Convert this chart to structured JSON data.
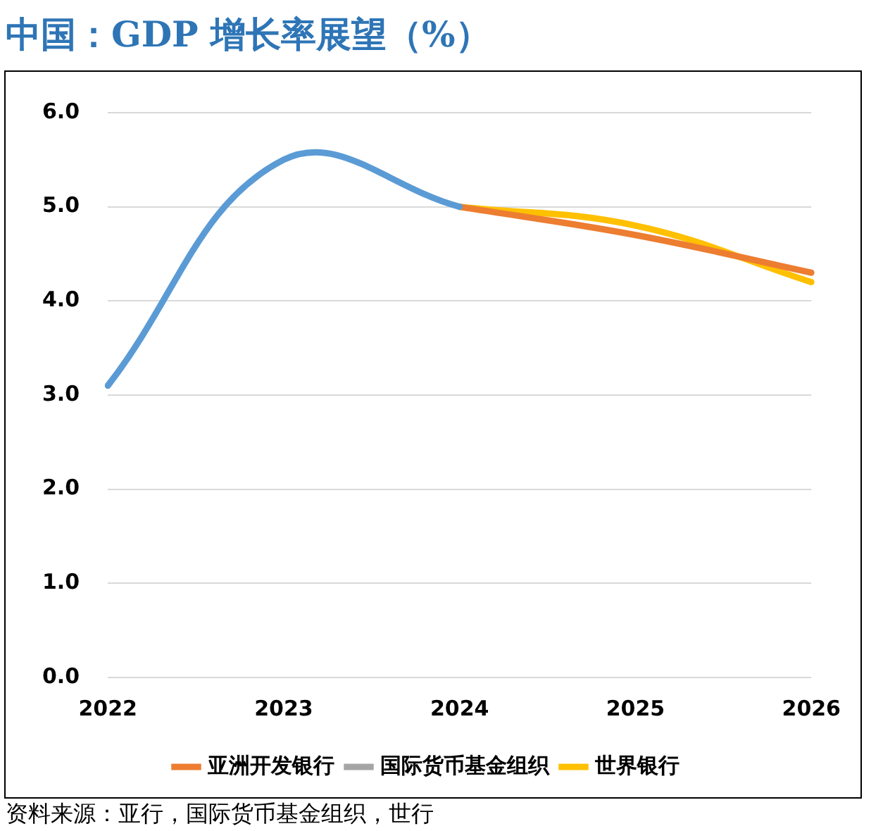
{
  "chart_data": {
    "type": "line",
    "title": "中国：GDP 增长率展望（%）",
    "categories": [
      "2022",
      "2023",
      "2024",
      "2025",
      "2026"
    ],
    "series": [
      {
        "color": "#5b9bd5",
        "values": [
          3.1,
          5.5,
          5.0,
          null,
          null
        ]
      },
      {
        "name": "亚洲开发银行",
        "color": "#ed7d31",
        "values": [
          null,
          null,
          5.0,
          4.7,
          4.3
        ]
      },
      {
        "name": "国际货币基金组织",
        "color": "#a5a5a5",
        "values": [
          null,
          null,
          null,
          null,
          null
        ]
      },
      {
        "name": "世界银行",
        "color": "#ffc000",
        "values": [
          null,
          null,
          5.0,
          4.8,
          4.2
        ]
      }
    ],
    "ylim": [
      0,
      6
    ],
    "yticks": [
      {
        "value": 0,
        "label": "0.0"
      },
      {
        "value": 1,
        "label": "1.0"
      },
      {
        "value": 2,
        "label": "2.0"
      },
      {
        "value": 3,
        "label": "3.0"
      },
      {
        "value": 4,
        "label": "4.0"
      },
      {
        "value": 5,
        "label": "5.0"
      },
      {
        "value": 6,
        "label": "6.0"
      }
    ],
    "grid": "y",
    "legend": "bottom",
    "marker": "none",
    "annotations": [
      "资料来源：亚行，国际货币基金组织，世行"
    ]
  }
}
